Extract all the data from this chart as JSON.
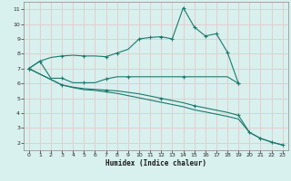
{
  "xlabel": "Humidex (Indice chaleur)",
  "xlim": [
    -0.5,
    23.5
  ],
  "ylim": [
    1.5,
    11.5
  ],
  "xticks": [
    0,
    1,
    2,
    3,
    4,
    5,
    6,
    7,
    8,
    9,
    10,
    11,
    12,
    13,
    14,
    15,
    16,
    17,
    18,
    19,
    20,
    21,
    22,
    23
  ],
  "yticks": [
    2,
    3,
    4,
    5,
    6,
    7,
    8,
    9,
    10,
    11
  ],
  "bg_color": "#d8f0ee",
  "grid_color": "#e8c8c8",
  "line_color": "#1a7a6e",
  "line1_x": [
    0,
    1,
    2,
    3,
    4,
    5,
    6,
    7,
    8,
    9,
    10,
    11,
    12,
    13,
    14,
    15,
    16,
    17,
    18,
    19
  ],
  "line1_y": [
    7.0,
    7.5,
    7.75,
    7.85,
    7.9,
    7.85,
    7.85,
    7.8,
    8.05,
    8.3,
    9.0,
    9.1,
    9.15,
    9.0,
    11.1,
    9.8,
    9.2,
    9.35,
    8.1,
    6.0
  ],
  "line1_mx": [
    0,
    1,
    3,
    5,
    7,
    8,
    10,
    11,
    12,
    13,
    14,
    15,
    16,
    17,
    18,
    19
  ],
  "line2_x": [
    0,
    1,
    2,
    3,
    4,
    5,
    6,
    7,
    8,
    9,
    10,
    11,
    12,
    13,
    14,
    15,
    16,
    17,
    18,
    19
  ],
  "line2_y": [
    7.0,
    7.5,
    6.35,
    6.35,
    6.05,
    6.05,
    6.05,
    6.3,
    6.45,
    6.45,
    6.45,
    6.45,
    6.45,
    6.45,
    6.45,
    6.45,
    6.45,
    6.45,
    6.45,
    6.0
  ],
  "line2_mx": [
    0,
    1,
    3,
    5,
    7,
    9,
    14,
    19
  ],
  "line3_x": [
    0,
    3,
    4,
    5,
    6,
    7,
    8,
    9,
    10,
    11,
    12,
    13,
    14,
    15,
    16,
    17,
    18,
    19,
    20,
    21,
    22,
    23
  ],
  "line3_y": [
    7.0,
    5.9,
    5.75,
    5.65,
    5.6,
    5.55,
    5.5,
    5.4,
    5.3,
    5.15,
    5.0,
    4.85,
    4.7,
    4.5,
    4.35,
    4.2,
    4.05,
    3.85,
    2.7,
    2.3,
    2.05,
    1.85
  ],
  "line3_mx": [
    0,
    3,
    7,
    12,
    15,
    19,
    20,
    21,
    22,
    23
  ],
  "line4_x": [
    0,
    3,
    4,
    5,
    6,
    7,
    8,
    9,
    10,
    11,
    12,
    13,
    14,
    15,
    16,
    17,
    18,
    19,
    20,
    21,
    22,
    23
  ],
  "line4_y": [
    7.0,
    5.9,
    5.72,
    5.58,
    5.53,
    5.43,
    5.33,
    5.18,
    5.03,
    4.88,
    4.73,
    4.58,
    4.43,
    4.22,
    4.08,
    3.93,
    3.78,
    3.6,
    2.7,
    2.3,
    2.05,
    1.85
  ]
}
